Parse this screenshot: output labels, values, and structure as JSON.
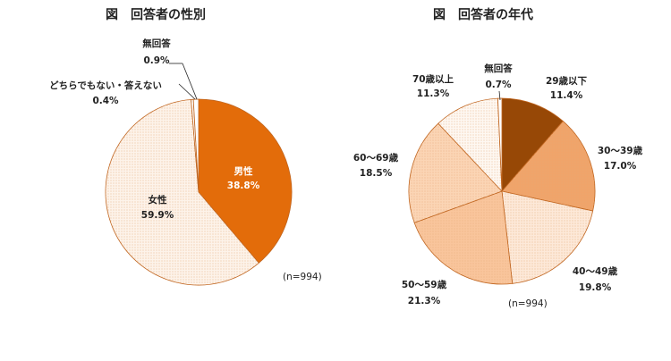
{
  "chart_data": [
    {
      "type": "pie",
      "title": "図　回答者の性別",
      "sample_note": "(n=994)",
      "slices": [
        {
          "label": "男性",
          "value": 38.8,
          "value_label": "38.8%",
          "color": "#e36c0a"
        },
        {
          "label": "女性",
          "value": 59.9,
          "value_label": "59.9%",
          "color": "#fdf3ea"
        },
        {
          "label": "どちらでもない・答えない",
          "value": 0.4,
          "value_label": "0.4%",
          "color": "#ffffff"
        },
        {
          "label": "無回答",
          "value": 0.9,
          "value_label": "0.9%",
          "color": "#ffffff"
        }
      ]
    },
    {
      "type": "pie",
      "title": "図　回答者の年代",
      "sample_note": "(n=994)",
      "slices": [
        {
          "label": "29歳以下",
          "value": 11.4,
          "value_label": "11.4%",
          "color": "#974806"
        },
        {
          "label": "30～39歳",
          "value": 17.0,
          "value_label": "17.0%",
          "color": "#f0a46a"
        },
        {
          "label": "40～49歳",
          "value": 19.8,
          "value_label": "19.8%",
          "color": "#fde9d9"
        },
        {
          "label": "50～59歳",
          "value": 21.3,
          "value_label": "21.3%",
          "color": "#f9c59c"
        },
        {
          "label": "60～69歳",
          "value": 18.5,
          "value_label": "18.5%",
          "color": "#fbd5b5"
        },
        {
          "label": "70歳以上",
          "value": 11.3,
          "value_label": "11.3%",
          "color": "#fef8f2"
        },
        {
          "label": "無回答",
          "value": 0.7,
          "value_label": "0.7%",
          "color": "#ffffff"
        }
      ]
    }
  ]
}
